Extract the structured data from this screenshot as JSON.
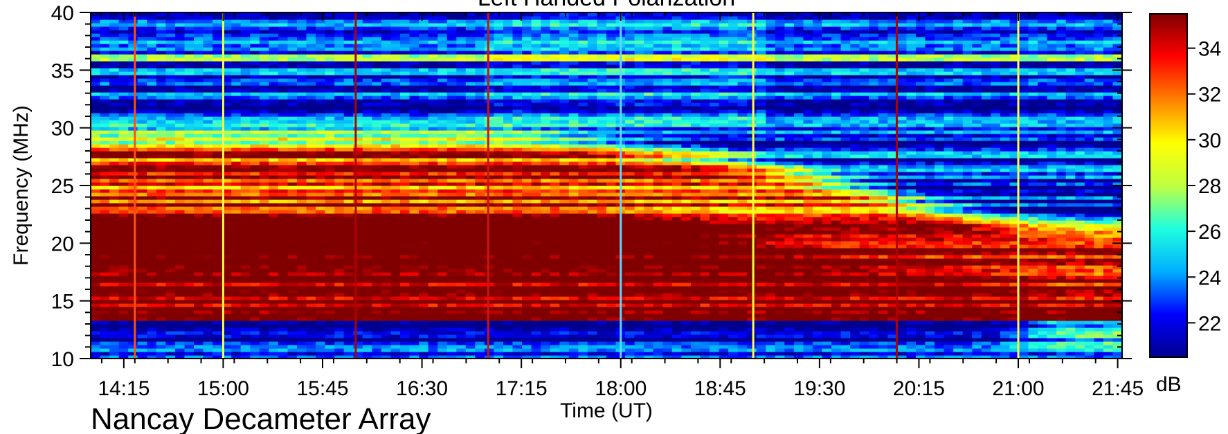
{
  "chart_data": {
    "type": "heatmap",
    "title": "Left Handed Polarization",
    "caption": "Nancay Decameter Array",
    "xlabel": "Time (UT)",
    "ylabel": "Frequency (MHz)",
    "colorbar_label": "dB",
    "x_ticks": [
      "14:15",
      "15:00",
      "15:45",
      "16:30",
      "17:15",
      "18:00",
      "18:45",
      "19:30",
      "20:15",
      "21:00",
      "21:45"
    ],
    "x_tick_minutes": [
      855,
      900,
      945,
      990,
      1035,
      1080,
      1125,
      1170,
      1215,
      1260,
      1305
    ],
    "xlim_minutes": [
      840,
      1307
    ],
    "y_ticks": [
      10,
      15,
      20,
      25,
      30,
      35,
      40
    ],
    "ylim": [
      10,
      40
    ],
    "colorbar_ticks": [
      22,
      24,
      26,
      28,
      30,
      32,
      34
    ],
    "color_range_db": [
      20.5,
      35.5
    ],
    "grid": false,
    "colorscale": [
      "#00008f",
      "#0000ff",
      "#00b0ff",
      "#20ffdf",
      "#c0ff40",
      "#ffff00",
      "#ff8000",
      "#ff0000",
      "#800000"
    ],
    "vertical_bursts": [
      {
        "time": "14:20",
        "color": "#ff5010"
      },
      {
        "time": "15:00",
        "color": "#ffff40"
      },
      {
        "time": "16:00",
        "color": "#b00000"
      },
      {
        "time": "17:00",
        "color": "#c81414"
      },
      {
        "time": "18:00",
        "color": "#60d8ff"
      },
      {
        "time": "19:00",
        "color": "#ffff40"
      },
      {
        "time": "20:05",
        "color": "#b00000"
      },
      {
        "time": "21:00",
        "color": "#ffff40"
      }
    ]
  }
}
